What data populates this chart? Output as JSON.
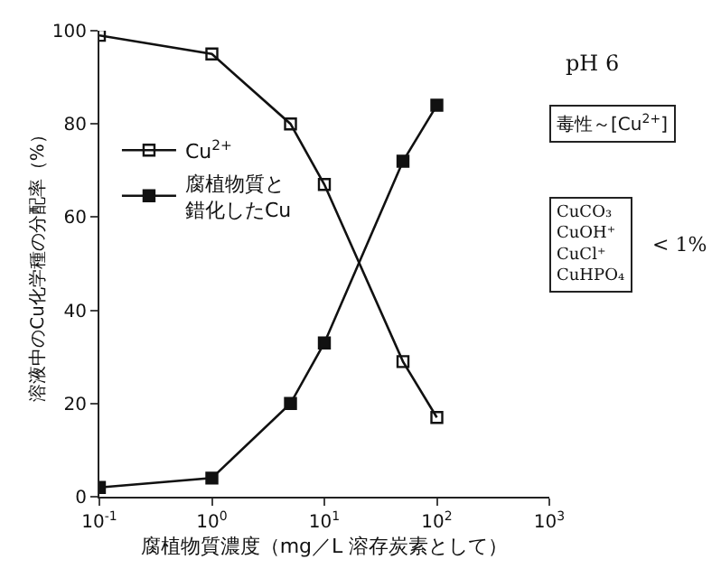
{
  "chart_data": {
    "type": "line",
    "xlabel": "腐植物質濃度（mg／L 溶存炭素として）",
    "ylabel": "溶液中のCu化学種の分配率（%）",
    "x": [
      0.1,
      1,
      5,
      10,
      50,
      100
    ],
    "series": [
      {
        "name": "Cu$^{2+}$",
        "color": "#111111",
        "marker": "square-open",
        "values": [
          99,
          95,
          80,
          67,
          29,
          17
        ]
      },
      {
        "name": "腐植物質と錯化したCu",
        "color": "#111111",
        "marker": "square",
        "values": [
          2,
          4,
          20,
          33,
          72,
          84
        ]
      }
    ],
    "log": "x",
    "xlim": [
      0.1,
      1000
    ],
    "ylim": [
      0,
      100
    ],
    "xticks": [
      {
        "value": 0.1,
        "label": "10$^{-1}$"
      },
      {
        "value": 1,
        "label": "10$^{0}$"
      },
      {
        "value": 10,
        "label": "10$^{1}$"
      },
      {
        "value": 100,
        "label": "10$^{2}$"
      },
      {
        "value": 1000,
        "label": "10$^{3}$"
      }
    ],
    "yticks": [
      0,
      20,
      40,
      60,
      80,
      100
    ],
    "legend": "left",
    "line_style": "solid",
    "annotations": [
      "pH 6",
      "毒性～[Cu$^{2+}$]",
      "CuCO₃\nCuOH⁺\nCuCl⁺\nCuHPO₄",
      "< 1%"
    ]
  }
}
